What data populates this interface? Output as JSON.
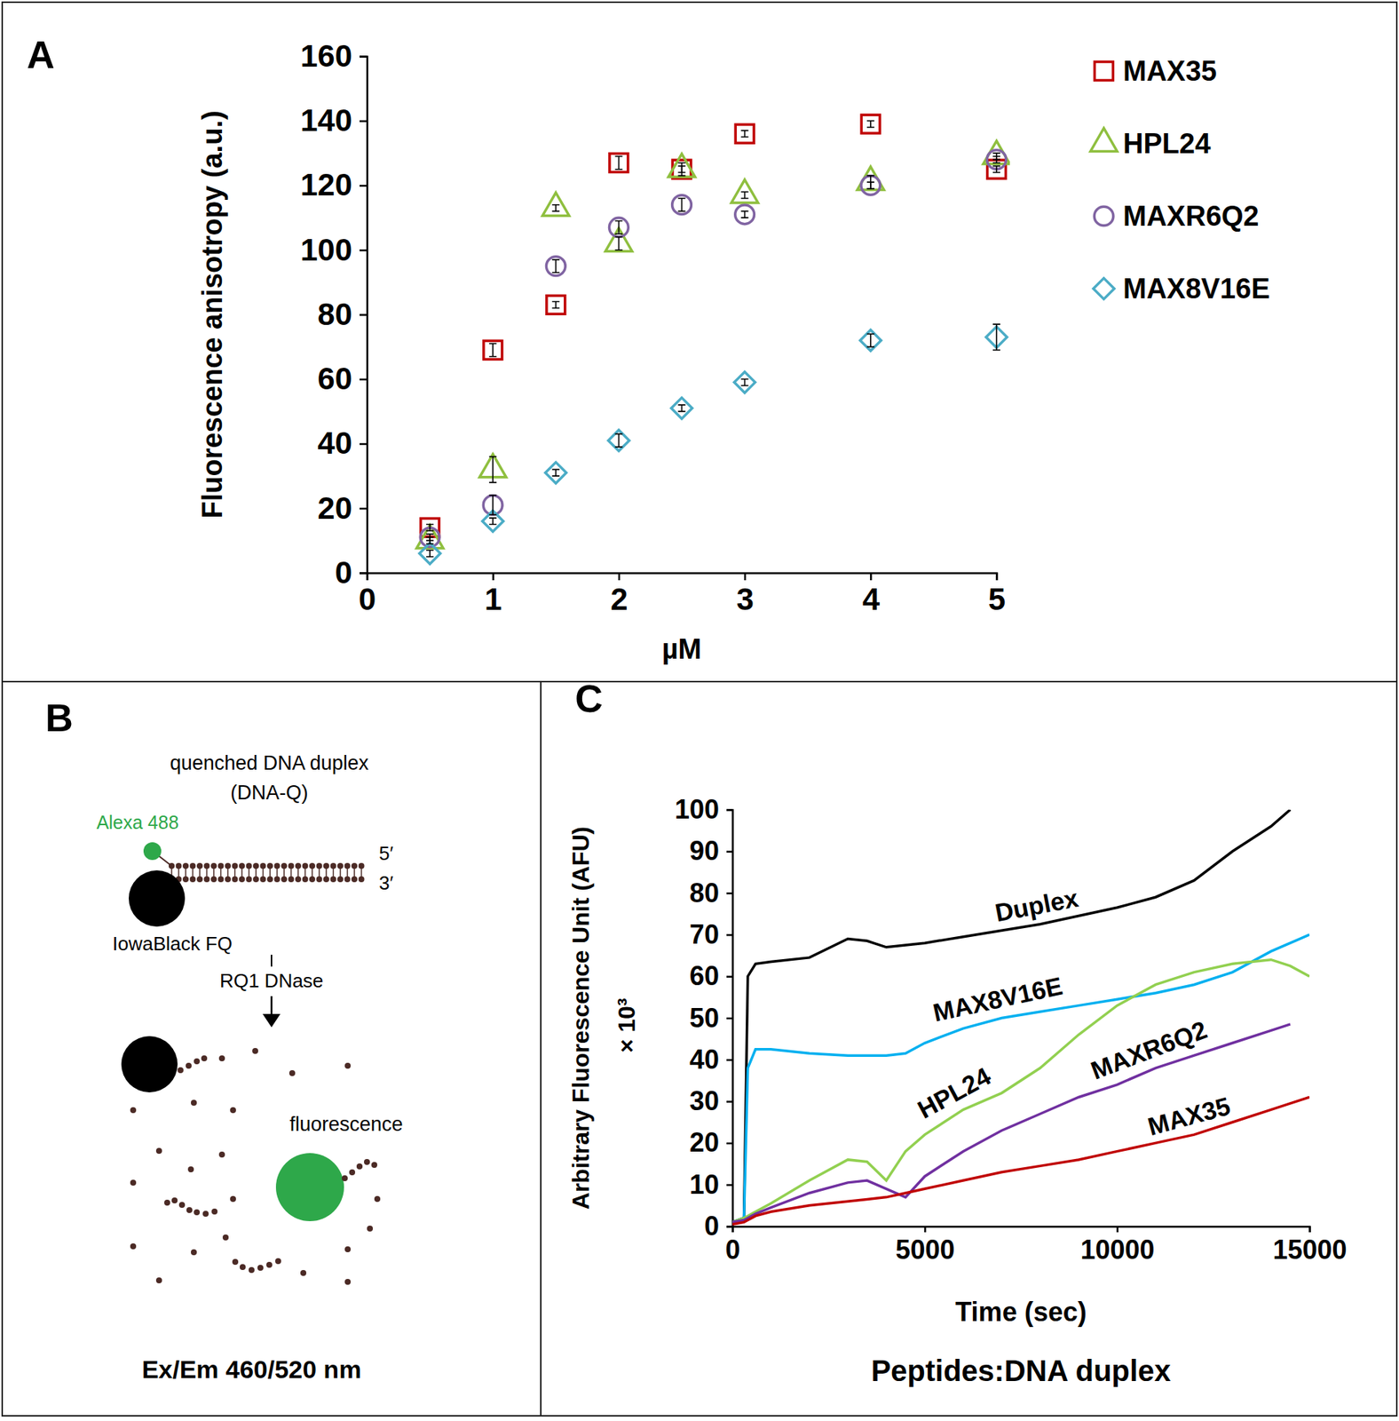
{
  "chart_data": [
    {
      "panel": "A",
      "type": "scatter",
      "xlabel": "µM",
      "ylabel": "Fluorescence anisotropy  (a.u.)",
      "x": [
        0.5,
        1,
        1.5,
        2,
        2.5,
        3,
        4,
        5
      ],
      "xlim": [
        0,
        5
      ],
      "xticks": [
        0,
        1,
        2,
        3,
        4,
        5
      ],
      "ylim": [
        0,
        160
      ],
      "yticks": [
        0,
        20,
        40,
        60,
        80,
        100,
        120,
        140,
        160
      ],
      "legend": "right",
      "series": [
        {
          "name": "MAX35",
          "color": "#c00000",
          "marker": "square",
          "values": [
            14,
            69,
            83,
            127,
            125,
            136,
            139,
            125
          ],
          "errors": [
            1,
            2,
            1,
            2,
            1,
            1,
            1,
            1
          ]
        },
        {
          "name": "HPL24",
          "color": "#8fbf3f",
          "marker": "triangle",
          "values": [
            10,
            32,
            113,
            102,
            125,
            117,
            121,
            129
          ],
          "errors": [
            1,
            4,
            1,
            2,
            2,
            1,
            2,
            1
          ]
        },
        {
          "name": "MAXR6Q2",
          "color": "#8064a2",
          "marker": "circle",
          "values": [
            11,
            21,
            95,
            107,
            114,
            111,
            120,
            128
          ],
          "errors": [
            1,
            3,
            2,
            2,
            2,
            1,
            1,
            1
          ]
        },
        {
          "name": "MAX8V16E",
          "color": "#4bacc6",
          "marker": "diamond",
          "values": [
            6,
            16,
            31,
            41,
            51,
            59,
            72,
            73
          ],
          "errors": [
            1,
            1,
            1,
            2,
            1,
            1,
            2,
            4
          ]
        }
      ]
    },
    {
      "panel": "C",
      "type": "line",
      "title": "Peptides:DNA duplex",
      "xlabel": "Time (sec)",
      "ylabel": "Arbitrary Fluorescence Unit (AFU)",
      "ylabel_multiplier": "× 10³",
      "x": [
        0,
        300,
        400,
        600,
        1000,
        2000,
        3000,
        3500,
        4000,
        4500,
        5000,
        6000,
        7000,
        8000,
        9000,
        10000,
        11000,
        12000,
        13000,
        14000,
        14500,
        15000
      ],
      "xlim": [
        0,
        15000
      ],
      "xticks": [
        0,
        5000,
        10000,
        15000
      ],
      "ylim": [
        0,
        100
      ],
      "yticks": [
        0,
        10,
        20,
        30,
        40,
        50,
        60,
        70,
        80,
        90,
        100
      ],
      "series": [
        {
          "name": "Duplex",
          "color": "#000000",
          "values": [
            1,
            2,
            60,
            63,
            63.5,
            64.5,
            69,
            68.5,
            67,
            67.5,
            68,
            69.5,
            71,
            72.5,
            74.5,
            76.5,
            79,
            83,
            90,
            96,
            100,
            null
          ]
        },
        {
          "name": "MAX8V16E",
          "color": "#00b0f0",
          "values": [
            1,
            2,
            38,
            42.5,
            42.5,
            41.5,
            41,
            41,
            41,
            41.5,
            44,
            47.5,
            50,
            51.5,
            53,
            54.5,
            56,
            58,
            61,
            66,
            68,
            70
          ]
        },
        {
          "name": "HPL24",
          "color": "#92d050",
          "values": [
            1,
            2,
            2.5,
            3.5,
            5.5,
            11,
            16,
            15.5,
            11,
            18,
            22,
            28,
            32,
            38,
            46,
            53,
            58,
            61,
            63,
            64,
            62.5,
            60
          ]
        },
        {
          "name": "MAXR6Q2",
          "color": "#7030a0",
          "values": [
            1,
            1.5,
            2,
            3,
            4.5,
            8,
            10.5,
            11,
            9,
            7,
            12,
            18,
            23,
            27,
            31,
            34,
            38,
            41,
            44,
            47,
            48.5,
            null
          ]
        },
        {
          "name": "MAX35",
          "color": "#c00000",
          "values": [
            0.5,
            1,
            1.5,
            2.5,
            3.5,
            5,
            6,
            6.5,
            7,
            8,
            9,
            11,
            13,
            14.5,
            16,
            18,
            20,
            22,
            25,
            28,
            29.5,
            31
          ]
        }
      ]
    }
  ],
  "diagram": {
    "panel": "B",
    "title": "quenched DNA duplex",
    "subtitle": "(DNA-Q)",
    "fluorophore": "Alexa 488",
    "quencher": "IowaBlack FQ",
    "strand_ends": [
      "5′",
      "3′"
    ],
    "enzyme": "RQ1 DNase",
    "product_label": "fluorescence",
    "footer": "Ex/Em 460/520 nm"
  }
}
